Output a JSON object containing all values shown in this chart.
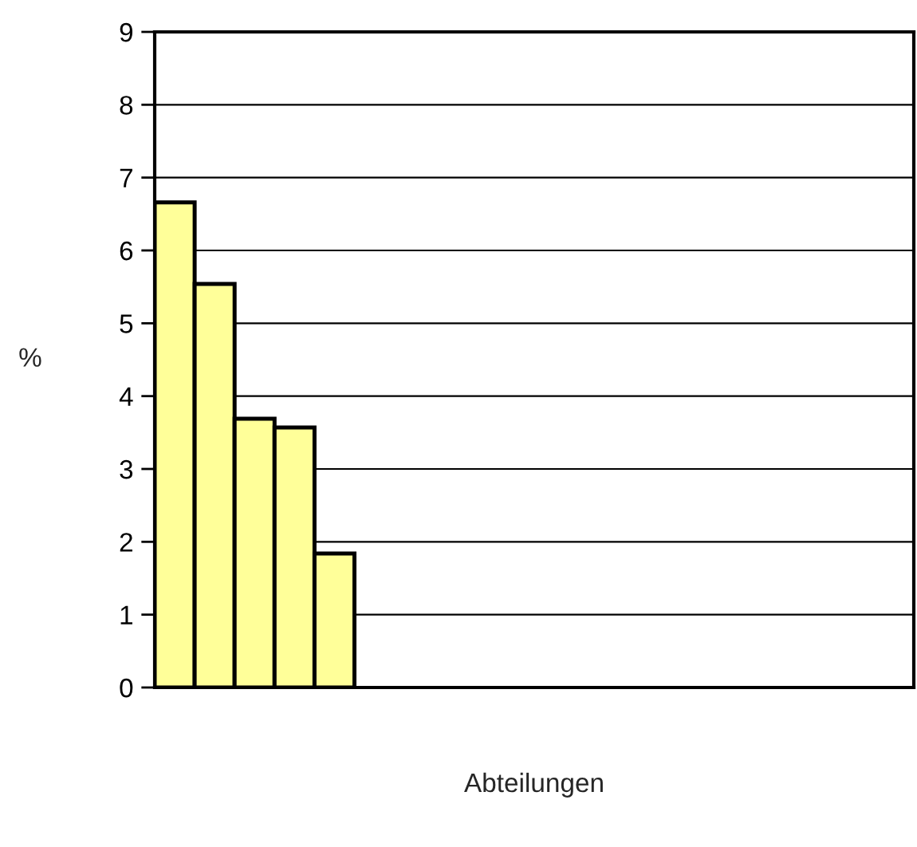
{
  "chart_data": {
    "type": "bar",
    "xlabel": "Abteilungen",
    "ylabel": "%",
    "categories": [
      null,
      null,
      null,
      null,
      null,
      null,
      null,
      null,
      null,
      null,
      null,
      null,
      null,
      null,
      null,
      null,
      null,
      null,
      null
    ],
    "values": [
      6.66,
      5.54,
      3.69,
      3.57,
      1.84,
      null,
      null,
      null,
      null,
      null,
      null,
      null,
      null,
      null,
      null,
      null,
      null,
      null,
      null
    ],
    "color": "#ffff99",
    "ylim": [
      0,
      9
    ],
    "yticks": [
      0,
      1,
      2,
      3,
      4,
      5,
      6,
      7,
      8,
      9
    ],
    "grid": "y",
    "legend": false
  }
}
